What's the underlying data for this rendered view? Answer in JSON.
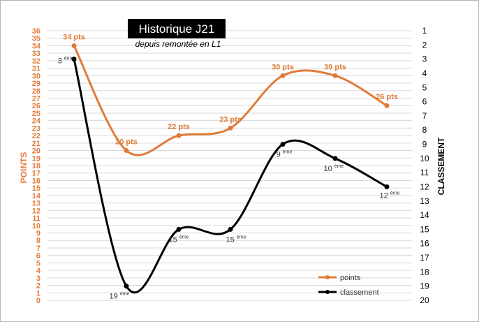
{
  "chart_data": {
    "type": "line",
    "title": "Historique J21",
    "subtitle": "depuis remontée en L1",
    "ylabel_left": "POINTS",
    "ylabel_right": "CLASSEMENT",
    "ylim_left": [
      0,
      36
    ],
    "ylim_right": [
      1,
      20
    ],
    "right_axis_inverted": true,
    "grid": true,
    "legend_position": "bottom-right",
    "colors": {
      "points": "#e07b39",
      "classement": "#000000",
      "title_bg": "#000000"
    },
    "x_count": 7,
    "series": [
      {
        "name": "points",
        "axis": "left",
        "values": [
          34,
          20,
          22,
          23,
          30,
          30,
          26
        ],
        "labels": [
          "34 pts",
          "20 pts",
          "22 pts",
          "23 pts",
          "30 pts",
          "30 pts",
          "26 pts"
        ]
      },
      {
        "name": "classement",
        "axis": "right",
        "values": [
          3,
          19,
          15,
          15,
          9,
          10,
          12
        ],
        "labels": [
          "3",
          "19",
          "15",
          "15",
          "9",
          "10",
          "12"
        ],
        "label_suffix": "ème"
      }
    ]
  }
}
